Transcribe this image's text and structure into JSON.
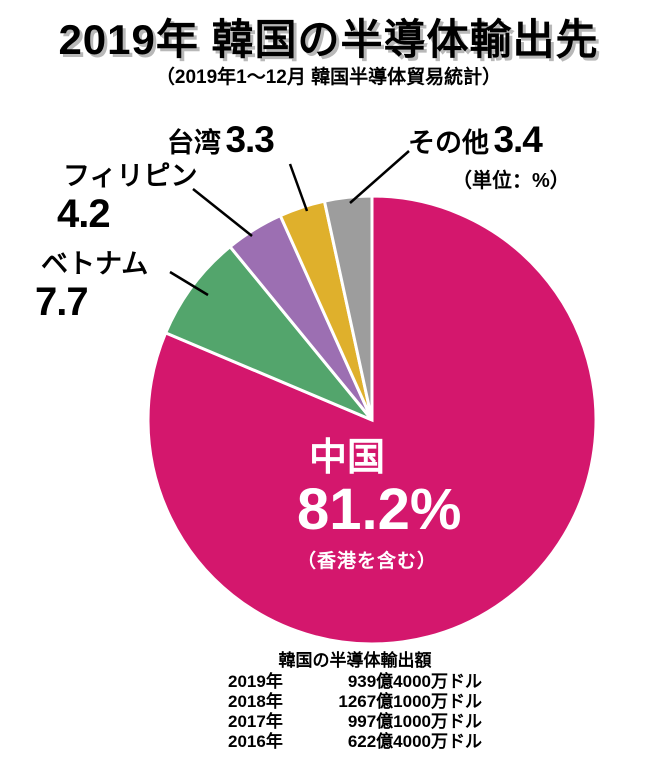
{
  "header": {
    "title": "2019年 韓国の半導体輸出先",
    "subtitle": "（2019年1～12月 韓国半導体貿易統計）",
    "unit_note": "（単位：%）"
  },
  "chart_data": {
    "type": "pie",
    "title": "2019年 韓国の半導体輸出先",
    "unit": "%",
    "start_angle_deg": 0,
    "direction": "clockwise",
    "slices": [
      {
        "key": "china",
        "label": "中国",
        "value": 81.2,
        "display": "81.2%",
        "note": "（香港を含む）",
        "color": "#d4176d"
      },
      {
        "key": "vietnam",
        "label": "ベトナム",
        "value": 7.7,
        "display": "7.7",
        "color": "#53a56c"
      },
      {
        "key": "philippines",
        "label": "フィリピン",
        "value": 4.2,
        "display": "4.2",
        "color": "#9c6fb2"
      },
      {
        "key": "taiwan",
        "label": "台湾",
        "value": 3.3,
        "display": "3.3",
        "color": "#dfb02c"
      },
      {
        "key": "other",
        "label": "その他",
        "value": 3.4,
        "display": "3.4",
        "color": "#9d9d9d"
      }
    ]
  },
  "footer": {
    "title": "韓国の半導体輸出額",
    "rows": [
      {
        "year": "2019年",
        "amount": "939億4000万ドル"
      },
      {
        "year": "2018年",
        "amount": "1267億1000万ドル"
      },
      {
        "year": "2017年",
        "amount": "997億1000万ドル"
      },
      {
        "year": "2016年",
        "amount": "622億4000万ドル"
      }
    ]
  }
}
